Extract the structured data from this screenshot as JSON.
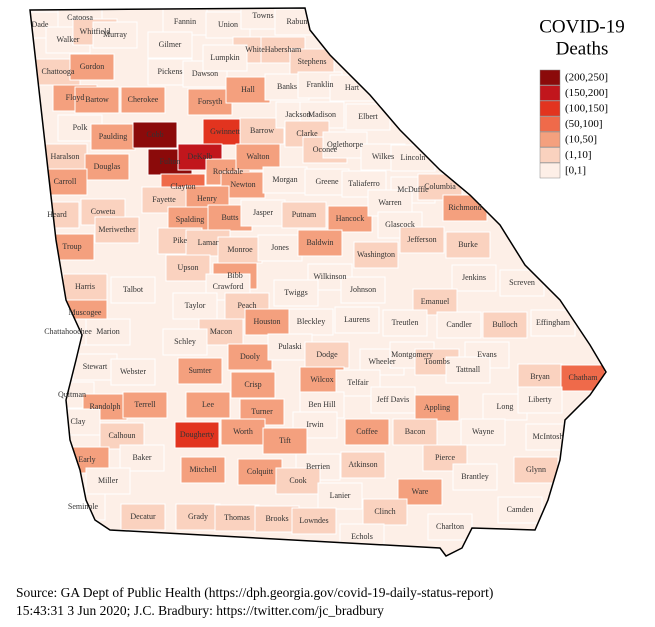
{
  "title": [
    "COVID-19",
    "Deaths"
  ],
  "legend": [
    {
      "label": "(200,250]",
      "color": "#8b0a0a"
    },
    {
      "label": "(150,200]",
      "color": "#c1161c"
    },
    {
      "label": "(100,150]",
      "color": "#e2341f"
    },
    {
      "label": "(50,100]",
      "color": "#ef6a4a"
    },
    {
      "label": "(10,50]",
      "color": "#f4a07e"
    },
    {
      "label": "(1,10]",
      "color": "#fad2bf"
    },
    {
      "label": "[0,1]",
      "color": "#fdefe7"
    }
  ],
  "counties": [
    {
      "name": "Dade",
      "bin": "[0,1]"
    },
    {
      "name": "Catoosa",
      "bin": "[0,1]"
    },
    {
      "name": "Walker",
      "bin": "[0,1]"
    },
    {
      "name": "Whitfield",
      "bin": "(1,10]"
    },
    {
      "name": "Murray",
      "bin": "[0,1]"
    },
    {
      "name": "Fannin",
      "bin": "[0,1]"
    },
    {
      "name": "Union",
      "bin": "[0,1]"
    },
    {
      "name": "Towns",
      "bin": "[0,1]"
    },
    {
      "name": "Rabun",
      "bin": "[0,1]"
    },
    {
      "name": "Gilmer",
      "bin": "[0,1]"
    },
    {
      "name": "White",
      "bin": "(1,10]"
    },
    {
      "name": "Habersham",
      "bin": "(1,10]"
    },
    {
      "name": "Stephens",
      "bin": "(1,10]"
    },
    {
      "name": "Chattooga",
      "bin": "(1,10]"
    },
    {
      "name": "Gordon",
      "bin": "(10,50]"
    },
    {
      "name": "Pickens",
      "bin": "[0,1]"
    },
    {
      "name": "Dawson",
      "bin": "[0,1]"
    },
    {
      "name": "Lumpkin",
      "bin": "[0,1]"
    },
    {
      "name": "Floyd",
      "bin": "(10,50]"
    },
    {
      "name": "Bartow",
      "bin": "(10,50]"
    },
    {
      "name": "Cherokee",
      "bin": "(10,50]"
    },
    {
      "name": "Forsyth",
      "bin": "(10,50]"
    },
    {
      "name": "Hall",
      "bin": "(10,50]"
    },
    {
      "name": "Banks",
      "bin": "[0,1]"
    },
    {
      "name": "Franklin",
      "bin": "[0,1]"
    },
    {
      "name": "Hart",
      "bin": "[0,1]"
    },
    {
      "name": "Polk",
      "bin": "[0,1]"
    },
    {
      "name": "Paulding",
      "bin": "(10,50]"
    },
    {
      "name": "Cobb",
      "bin": "(200,250]"
    },
    {
      "name": "Gwinnett",
      "bin": "(100,150]"
    },
    {
      "name": "Barrow",
      "bin": "(1,10]"
    },
    {
      "name": "Jackson",
      "bin": "[0,1]"
    },
    {
      "name": "Madison",
      "bin": "[0,1]"
    },
    {
      "name": "Elbert",
      "bin": "[0,1]"
    },
    {
      "name": "Haralson",
      "bin": "(1,10]"
    },
    {
      "name": "Douglas",
      "bin": "(10,50]"
    },
    {
      "name": "Fulton",
      "bin": "(200,250]"
    },
    {
      "name": "DeKalb",
      "bin": "(150,200]"
    },
    {
      "name": "Rockdale",
      "bin": "(10,50]"
    },
    {
      "name": "Clarke",
      "bin": "(1,10]"
    },
    {
      "name": "Oconee",
      "bin": "(1,10]"
    },
    {
      "name": "Oglethorpe",
      "bin": "[0,1]"
    },
    {
      "name": "Walton",
      "bin": "(10,50]"
    },
    {
      "name": "Wilkes",
      "bin": "[0,1]"
    },
    {
      "name": "Lincoln",
      "bin": "[0,1]"
    },
    {
      "name": "Carroll",
      "bin": "(10,50]"
    },
    {
      "name": "Clayton",
      "bin": "(50,100]"
    },
    {
      "name": "Newton",
      "bin": "(10,50]"
    },
    {
      "name": "Morgan",
      "bin": "[0,1]"
    },
    {
      "name": "Greene",
      "bin": "[0,1]"
    },
    {
      "name": "Taliaferro",
      "bin": "[0,1]"
    },
    {
      "name": "McDuffie",
      "bin": "[0,1]"
    },
    {
      "name": "Columbia",
      "bin": "(1,10]"
    },
    {
      "name": "Henry",
      "bin": "(10,50]"
    },
    {
      "name": "Fayette",
      "bin": "(1,10]"
    },
    {
      "name": "Heard",
      "bin": "(1,10]"
    },
    {
      "name": "Coweta",
      "bin": "(1,10]"
    },
    {
      "name": "Spalding",
      "bin": "(10,50]"
    },
    {
      "name": "Butts",
      "bin": "(10,50]"
    },
    {
      "name": "Jasper",
      "bin": "[0,1]"
    },
    {
      "name": "Putnam",
      "bin": "(1,10]"
    },
    {
      "name": "Hancock",
      "bin": "(10,50]"
    },
    {
      "name": "Warren",
      "bin": "[0,1]"
    },
    {
      "name": "Glascock",
      "bin": "[0,1]"
    },
    {
      "name": "Richmond",
      "bin": "(10,50]"
    },
    {
      "name": "Troup",
      "bin": "(10,50]"
    },
    {
      "name": "Meriwether",
      "bin": "(1,10]"
    },
    {
      "name": "Pike",
      "bin": "(1,10]"
    },
    {
      "name": "Lamar",
      "bin": "(1,10]"
    },
    {
      "name": "Monroe",
      "bin": "(1,10]"
    },
    {
      "name": "Jones",
      "bin": "[0,1]"
    },
    {
      "name": "Baldwin",
      "bin": "(10,50]"
    },
    {
      "name": "Jefferson",
      "bin": "(1,10]"
    },
    {
      "name": "Washington",
      "bin": "(1,10]"
    },
    {
      "name": "Burke",
      "bin": "(1,10]"
    },
    {
      "name": "Upson",
      "bin": "(1,10]"
    },
    {
      "name": "Bibb",
      "bin": "(10,50]"
    },
    {
      "name": "Wilkinson",
      "bin": "[0,1]"
    },
    {
      "name": "Jenkins",
      "bin": "[0,1]"
    },
    {
      "name": "Screven",
      "bin": "[0,1]"
    },
    {
      "name": "Harris",
      "bin": "(1,10]"
    },
    {
      "name": "Talbot",
      "bin": "[0,1]"
    },
    {
      "name": "Crawford",
      "bin": "[0,1]"
    },
    {
      "name": "Twiggs",
      "bin": "[0,1]"
    },
    {
      "name": "Johnson",
      "bin": "[0,1]"
    },
    {
      "name": "Emanuel",
      "bin": "(1,10]"
    },
    {
      "name": "Muscogee",
      "bin": "(10,50]"
    },
    {
      "name": "Taylor",
      "bin": "[0,1]"
    },
    {
      "name": "Peach",
      "bin": "(1,10]"
    },
    {
      "name": "Houston",
      "bin": "(10,50]"
    },
    {
      "name": "Bleckley",
      "bin": "[0,1]"
    },
    {
      "name": "Laurens",
      "bin": "[0,1]"
    },
    {
      "name": "Candler",
      "bin": "[0,1]"
    },
    {
      "name": "Bulloch",
      "bin": "(1,10]"
    },
    {
      "name": "Effingham",
      "bin": "[0,1]"
    },
    {
      "name": "Chattahoochee",
      "bin": "[0,1]"
    },
    {
      "name": "Marion",
      "bin": "[0,1]"
    },
    {
      "name": "Macon",
      "bin": "(1,10]"
    },
    {
      "name": "Schley",
      "bin": "[0,1]"
    },
    {
      "name": "Treutlen",
      "bin": "[0,1]"
    },
    {
      "name": "Stewart",
      "bin": "[0,1]"
    },
    {
      "name": "Webster",
      "bin": "[0,1]"
    },
    {
      "name": "Sumter",
      "bin": "(10,50]"
    },
    {
      "name": "Dooly",
      "bin": "(10,50]"
    },
    {
      "name": "Pulaski",
      "bin": "[0,1]"
    },
    {
      "name": "Dodge",
      "bin": "(1,10]"
    },
    {
      "name": "Wheeler",
      "bin": "[0,1]"
    },
    {
      "name": "Montgomery",
      "bin": "[0,1]"
    },
    {
      "name": "Toombs",
      "bin": "(1,10]"
    },
    {
      "name": "Evans",
      "bin": "[0,1]"
    },
    {
      "name": "Tattnall",
      "bin": "[0,1]"
    },
    {
      "name": "Bryan",
      "bin": "(1,10]"
    },
    {
      "name": "Chatham",
      "bin": "(50,100]"
    },
    {
      "name": "Quitman",
      "bin": "[0,1]"
    },
    {
      "name": "Crisp",
      "bin": "(10,50]"
    },
    {
      "name": "Wilcox",
      "bin": "(10,50]"
    },
    {
      "name": "Telfair",
      "bin": "[0,1]"
    },
    {
      "name": "Randolph",
      "bin": "(10,50]"
    },
    {
      "name": "Terrell",
      "bin": "(10,50]"
    },
    {
      "name": "Lee",
      "bin": "(10,50]"
    },
    {
      "name": "Appling",
      "bin": "(10,50]"
    },
    {
      "name": "Long",
      "bin": "[0,1]"
    },
    {
      "name": "Liberty",
      "bin": "[0,1]"
    },
    {
      "name": "Ben Hill",
      "bin": "[0,1]"
    },
    {
      "name": "Jeff Davis",
      "bin": "[0,1]"
    },
    {
      "name": "Clay",
      "bin": "[0,1]"
    },
    {
      "name": "Turner",
      "bin": "(10,50]"
    },
    {
      "name": "Irwin",
      "bin": "[0,1]"
    },
    {
      "name": "Calhoun",
      "bin": "(1,10]"
    },
    {
      "name": "Dougherty",
      "bin": "(100,150]"
    },
    {
      "name": "Worth",
      "bin": "(10,50]"
    },
    {
      "name": "Tift",
      "bin": "(10,50]"
    },
    {
      "name": "Coffee",
      "bin": "(10,50]"
    },
    {
      "name": "Bacon",
      "bin": "(1,10]"
    },
    {
      "name": "Wayne",
      "bin": "[0,1]"
    },
    {
      "name": "McIntosh",
      "bin": "[0,1]"
    },
    {
      "name": "Early",
      "bin": "(10,50]"
    },
    {
      "name": "Baker",
      "bin": "[0,1]"
    },
    {
      "name": "Mitchell",
      "bin": "(10,50]"
    },
    {
      "name": "Colquitt",
      "bin": "(10,50]"
    },
    {
      "name": "Berrien",
      "bin": "[0,1]"
    },
    {
      "name": "Atkinson",
      "bin": "(1,10]"
    },
    {
      "name": "Pierce",
      "bin": "(1,10]"
    },
    {
      "name": "Glynn",
      "bin": "(1,10]"
    },
    {
      "name": "Brantley",
      "bin": "[0,1]"
    },
    {
      "name": "Ware",
      "bin": "(10,50]"
    },
    {
      "name": "Miller",
      "bin": "[0,1]"
    },
    {
      "name": "Cook",
      "bin": "(1,10]"
    },
    {
      "name": "Lanier",
      "bin": "[0,1]"
    },
    {
      "name": "Seminole",
      "bin": "[0,1]"
    },
    {
      "name": "Decatur",
      "bin": "(1,10]"
    },
    {
      "name": "Grady",
      "bin": "(1,10]"
    },
    {
      "name": "Thomas",
      "bin": "(1,10]"
    },
    {
      "name": "Brooks",
      "bin": "(1,10]"
    },
    {
      "name": "Lowndes",
      "bin": "(1,10]"
    },
    {
      "name": "Clinch",
      "bin": "(1,10]"
    },
    {
      "name": "Camden",
      "bin": "[0,1]"
    },
    {
      "name": "Charlton",
      "bin": "[0,1]"
    },
    {
      "name": "Echols",
      "bin": "[0,1]"
    }
  ],
  "source": [
    "Source: GA Dept of Public Health (https://dph.georgia.gov/covid-19-daily-status-report)",
    "15:43:31   3 Jun 2020; J.C. Bradbury: https://twitter.com/jc_bradbury"
  ]
}
